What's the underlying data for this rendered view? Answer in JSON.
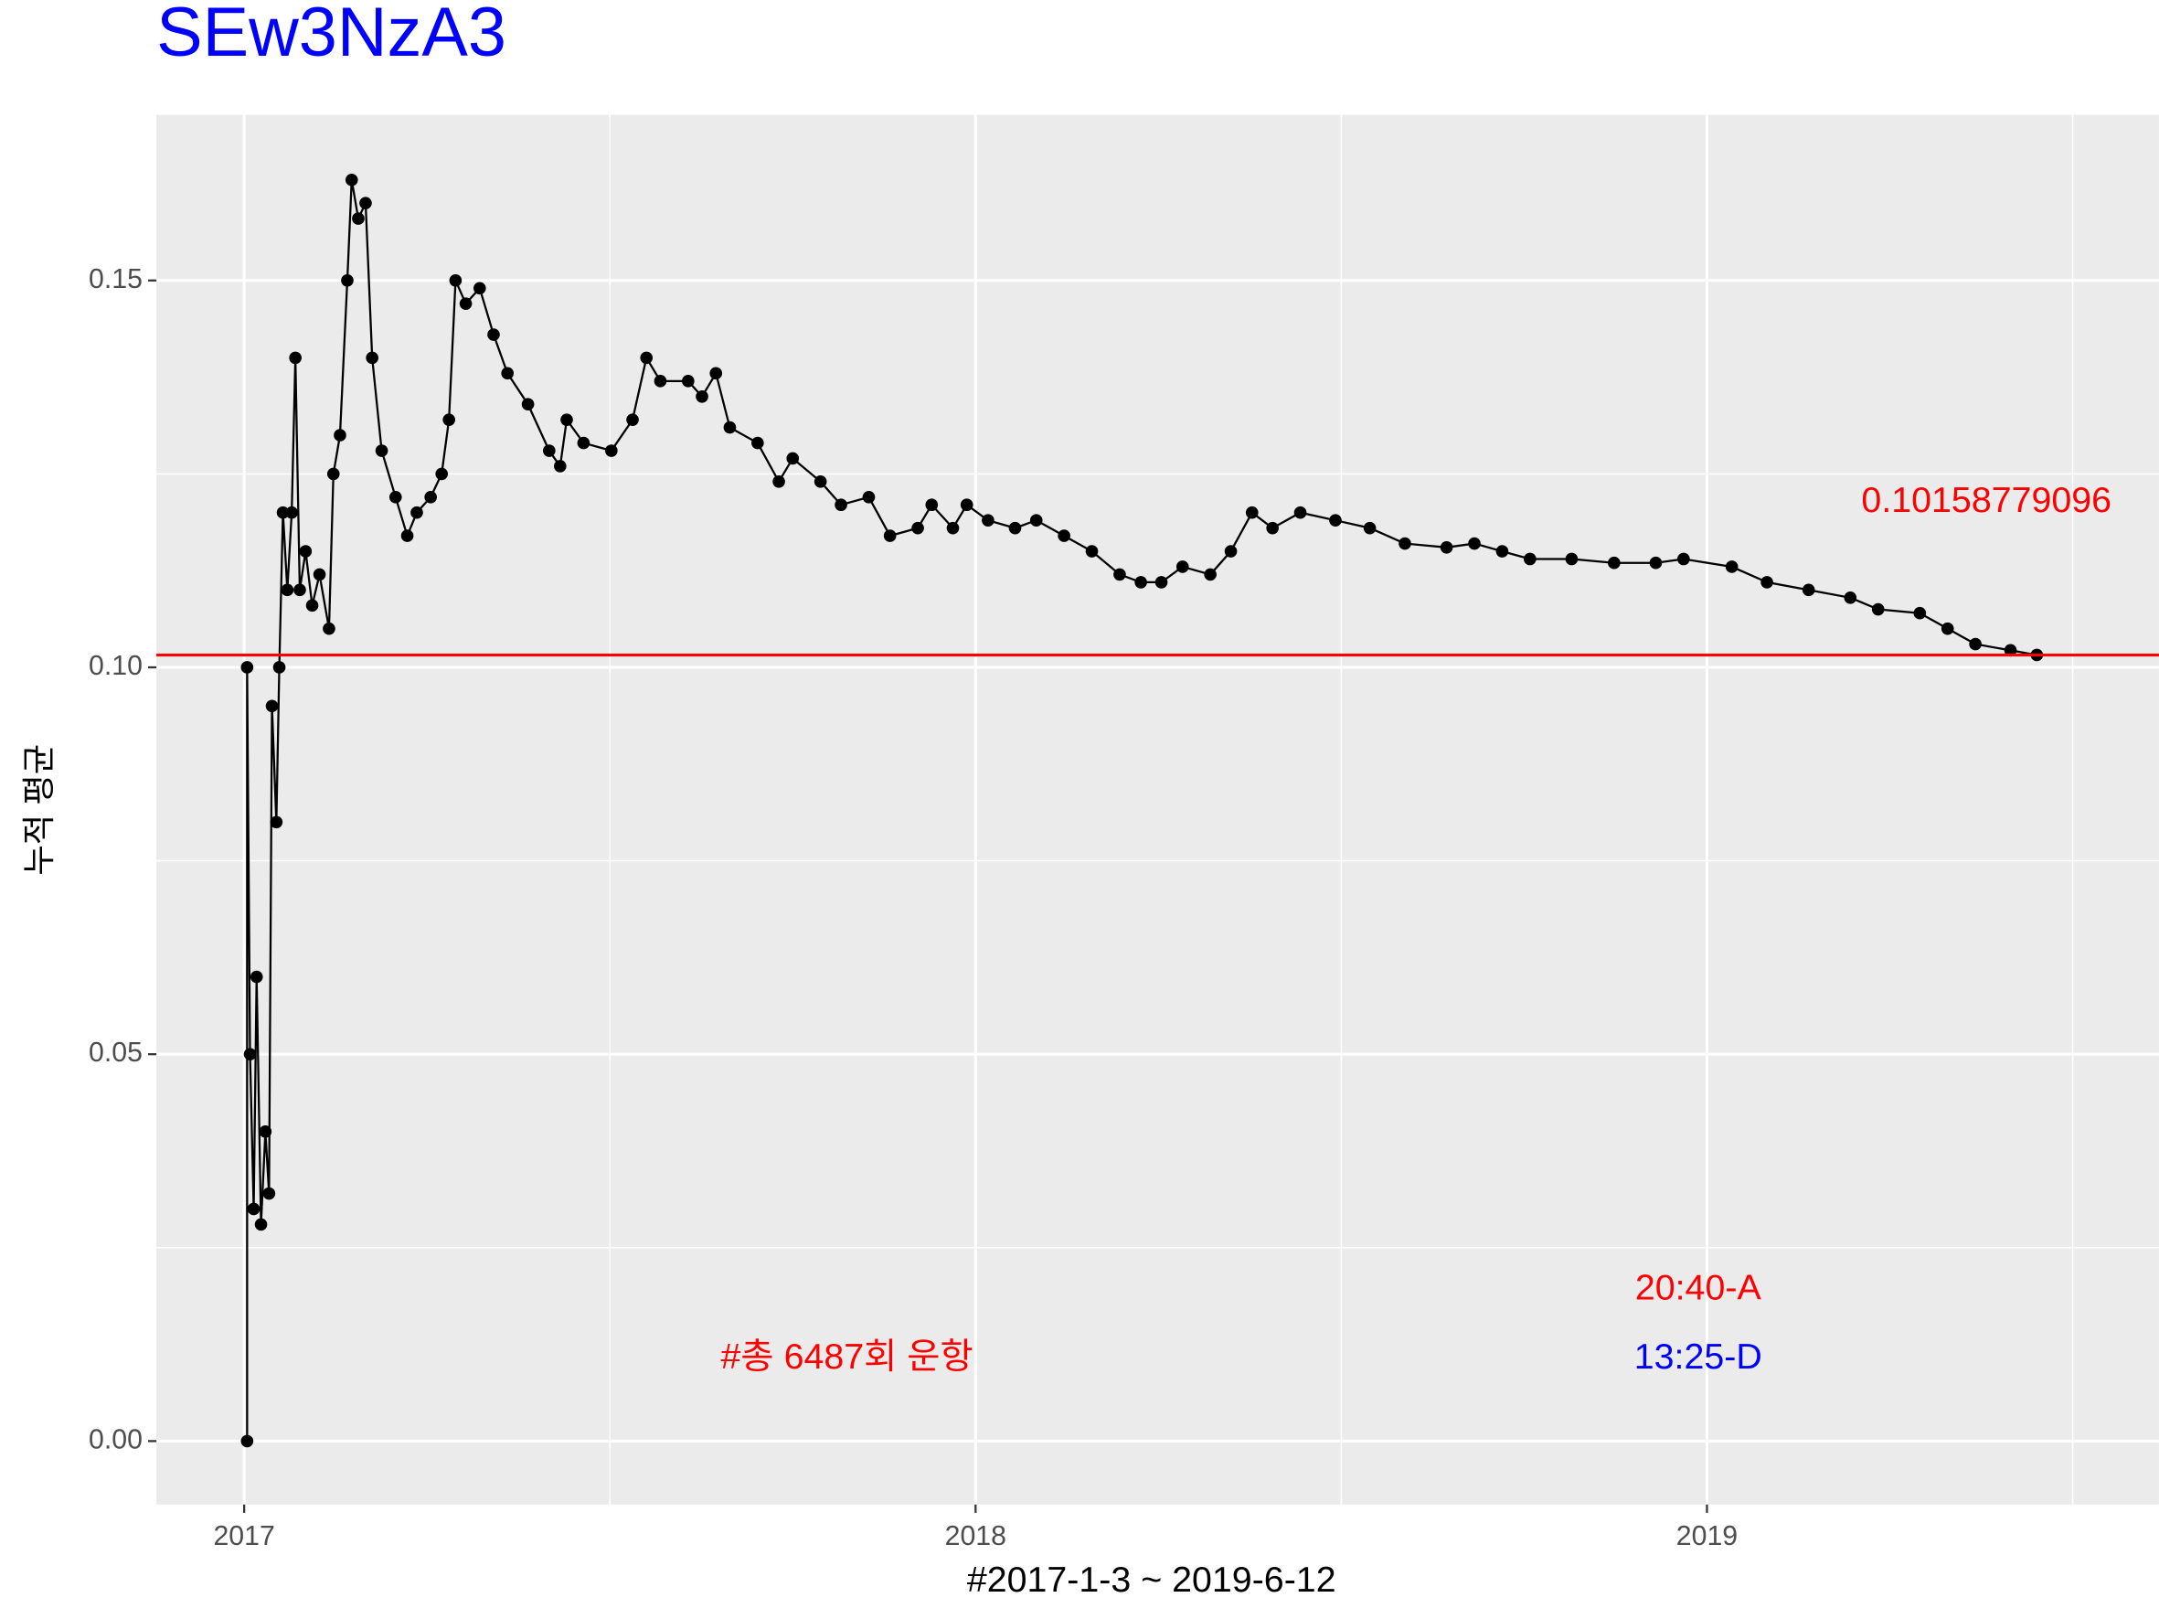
{
  "chart_data": {
    "type": "line",
    "title": "SEw3NzA3",
    "x_label": "#2017-1-3 ~ 2019-6-12",
    "y_label": "누적 평균",
    "series": [
      {
        "color": "#000000",
        "x": [
          2017.004,
          2017.004,
          2017.008,
          2017.013,
          2017.017,
          2017.023,
          2017.029,
          2017.034,
          2017.038,
          2017.044,
          2017.048,
          2017.053,
          2017.059,
          2017.065,
          2017.07,
          2017.076,
          2017.084,
          2017.093,
          2017.103,
          2017.116,
          2017.122,
          2017.131,
          2017.141,
          2017.147,
          2017.156,
          2017.166,
          2017.175,
          2017.188,
          2017.207,
          2017.223,
          2017.236,
          2017.255,
          2017.27,
          2017.28,
          2017.289,
          2017.303,
          2017.322,
          2017.341,
          2017.36,
          2017.388,
          2017.417,
          2017.432,
          2017.441,
          2017.464,
          2017.502,
          2017.531,
          2017.55,
          2017.569,
          2017.607,
          2017.626,
          2017.645,
          2017.664,
          2017.702,
          2017.731,
          2017.75,
          2017.788,
          2017.816,
          2017.854,
          2017.883,
          2017.921,
          2017.94,
          2017.969,
          2017.988,
          2018.017,
          2018.054,
          2018.083,
          2018.121,
          2018.159,
          2018.197,
          2018.226,
          2018.254,
          2018.283,
          2018.321,
          2018.349,
          2018.378,
          2018.406,
          2018.444,
          2018.492,
          2018.539,
          2018.587,
          2018.644,
          2018.682,
          2018.72,
          2018.758,
          2018.815,
          2018.873,
          2018.93,
          2018.968,
          2019.034,
          2019.082,
          2019.139,
          2019.196,
          2019.234,
          2019.291,
          2019.329,
          2019.367,
          2019.415,
          2019.451
        ],
        "values": [
          0,
          0.1,
          0.05,
          0.03,
          0.06,
          0.028,
          0.04,
          0.032,
          0.095,
          0.08,
          0.1,
          0.12,
          0.11,
          0.12,
          0.14,
          0.11,
          0.115,
          0.108,
          0.112,
          0.105,
          0.125,
          0.13,
          0.15,
          0.163,
          0.158,
          0.16,
          0.14,
          0.128,
          0.122,
          0.117,
          0.12,
          0.122,
          0.125,
          0.132,
          0.15,
          0.147,
          0.149,
          0.143,
          0.138,
          0.134,
          0.128,
          0.126,
          0.132,
          0.129,
          0.128,
          0.132,
          0.14,
          0.137,
          0.137,
          0.135,
          0.138,
          0.131,
          0.129,
          0.124,
          0.127,
          0.124,
          0.121,
          0.122,
          0.117,
          0.118,
          0.121,
          0.118,
          0.121,
          0.119,
          0.118,
          0.119,
          0.117,
          0.115,
          0.112,
          0.111,
          0.111,
          0.113,
          0.112,
          0.115,
          0.12,
          0.118,
          0.12,
          0.119,
          0.118,
          0.116,
          0.1155,
          0.116,
          0.115,
          0.114,
          0.114,
          0.1135,
          0.1135,
          0.114,
          0.113,
          0.111,
          0.11,
          0.109,
          0.1075,
          0.107,
          0.105,
          0.103,
          0.1022,
          0.1016
        ]
      }
    ],
    "hline": {
      "value": 0.10158779096,
      "label": "0.10158779096",
      "color": "#ff0000"
    },
    "annotations": [
      {
        "text": "20:40-A",
        "color": "#ff0000"
      },
      {
        "text": "13:25-D",
        "color": "#0000ff"
      },
      {
        "text": "#총 6487회 운항",
        "color": "#ff0000"
      }
    ],
    "xlim": [
      2016.88,
      2019.618
    ],
    "xticks": [
      2017,
      2018,
      2019
    ],
    "xminor": [
      2017.5,
      2018.5,
      2019.5
    ],
    "ylim": [
      -0.0082,
      0.1714
    ],
    "yticks": [
      {
        "value": 0,
        "label": "0.00"
      },
      {
        "value": 0.05,
        "label": "0.05"
      },
      {
        "value": 0.1,
        "label": "0.10"
      },
      {
        "value": 0.15,
        "label": "0.15"
      }
    ],
    "yminor": [
      0.025,
      0.075,
      0.125
    ],
    "grid": true
  }
}
